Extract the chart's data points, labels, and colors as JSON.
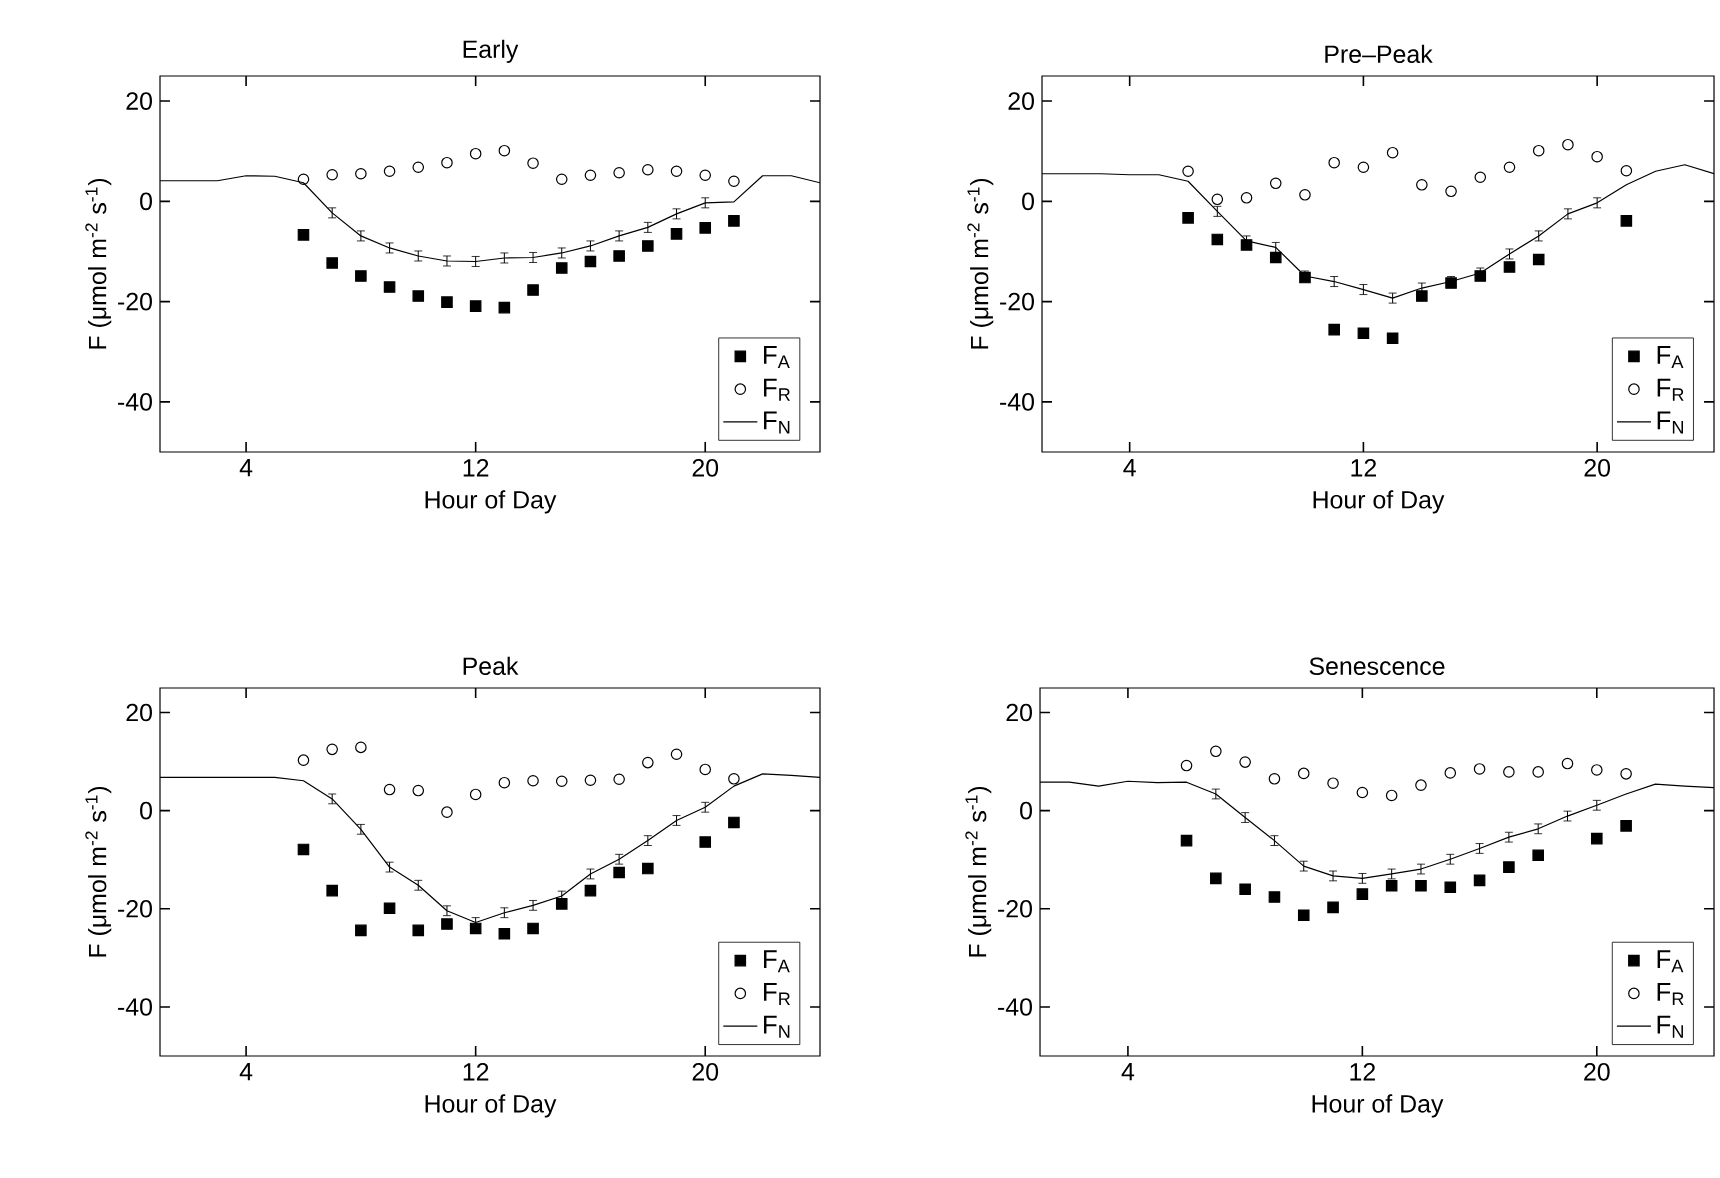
{
  "chart_data": [
    {
      "type": "scatter",
      "title": "Early",
      "xlabel": "Hour of Day",
      "ylabel": "F (μmol m$^{-2}$ s$^{-1}$)",
      "xlim": [
        1,
        24
      ],
      "ylim": [
        -50,
        25
      ],
      "xticks": [
        4,
        12,
        20
      ],
      "yticks": [
        20,
        0,
        -20,
        -40
      ],
      "legend": "bottom right",
      "series": [
        {
          "name": "F$_{A}$",
          "type": "scatter",
          "marker": "square",
          "color": "#000000",
          "x": [
            6,
            7,
            8,
            9,
            10,
            11,
            12,
            13,
            14,
            15,
            16,
            17,
            18,
            19,
            20,
            21
          ],
          "values": [
            -6.7,
            -12.3,
            -14.9,
            -17.1,
            -18.9,
            -20.1,
            -20.9,
            -21.2,
            -17.7,
            -13.3,
            -12,
            -10.9,
            -8.9,
            -6.5,
            -5.3,
            -3.9
          ]
        },
        {
          "name": "F$_{R}$",
          "type": "scatter",
          "marker": "circle",
          "color": "#000000",
          "x": [
            6,
            7,
            8,
            9,
            10,
            11,
            12,
            13,
            14,
            15,
            16,
            17,
            18,
            19,
            20,
            21
          ],
          "values": [
            4.4,
            5.3,
            5.5,
            6,
            6.8,
            7.7,
            9.5,
            10.1,
            7.6,
            4.4,
            5.2,
            5.7,
            6.3,
            6,
            5.2,
            4
          ]
        },
        {
          "name": "F$_{N}$",
          "type": "line",
          "marker": "none",
          "color": "#000000",
          "x": [
            1,
            2,
            3,
            4,
            5,
            6,
            7,
            8,
            9,
            10,
            11,
            12,
            13,
            14,
            15,
            16,
            17,
            18,
            19,
            20,
            21,
            22,
            23,
            24
          ],
          "values": [
            4.1,
            4.1,
            4.1,
            5.1,
            5,
            3.7,
            -2.3,
            -6.9,
            -9.3,
            -10.9,
            -11.9,
            -12,
            -11.3,
            -11.2,
            -10.3,
            -8.9,
            -6.9,
            -5.2,
            -2.5,
            -0.3,
            -0.1,
            5.1,
            5.1,
            3.7
          ],
          "errors": [
            null,
            null,
            null,
            null,
            null,
            null,
            1,
            1,
            1,
            1,
            1,
            1,
            1,
            1,
            1,
            1,
            1,
            1,
            1,
            1,
            null,
            null,
            null,
            null
          ]
        }
      ]
    },
    {
      "type": "scatter",
      "title": "Pre‒Peak",
      "xlabel": "Hour of Day",
      "ylabel": "F (μmol m$^{-2}$ s$^{-1}$)",
      "xlim": [
        1,
        24
      ],
      "ylim": [
        -50,
        25
      ],
      "xticks": [
        4,
        12,
        20
      ],
      "yticks": [
        20,
        0,
        -20,
        -40
      ],
      "legend": "bottom right",
      "series": [
        {
          "name": "F$_{A}$",
          "type": "scatter",
          "marker": "square",
          "color": "#000000",
          "x": [
            6,
            7,
            8,
            9,
            10,
            11,
            12,
            13,
            14,
            15,
            16,
            17,
            18,
            19,
            20,
            21
          ],
          "values": [
            -3.3,
            -7.6,
            -8.7,
            -11.2,
            -15.2,
            -25.6,
            -26.3,
            -27.3,
            -18.9,
            -16.3,
            -14.9,
            -13.1,
            -11.6,
            null,
            null,
            -3.9
          ]
        },
        {
          "name": "F$_{R}$",
          "type": "scatter",
          "marker": "circle",
          "color": "#000000",
          "x": [
            6,
            7,
            8,
            9,
            10,
            11,
            12,
            13,
            14,
            15,
            16,
            17,
            18,
            19,
            20,
            21
          ],
          "values": [
            6,
            0.4,
            0.7,
            3.6,
            1.3,
            7.7,
            6.8,
            9.7,
            3.3,
            2,
            4.8,
            6.8,
            10.1,
            11.3,
            8.9,
            6.1
          ]
        },
        {
          "name": "F$_{N}$",
          "type": "line",
          "marker": "none",
          "color": "#000000",
          "x": [
            1,
            2,
            3,
            4,
            5,
            6,
            7,
            8,
            9,
            10,
            11,
            12,
            13,
            14,
            15,
            16,
            17,
            18,
            19,
            20,
            21,
            22,
            23,
            24
          ],
          "values": [
            5.5,
            5.5,
            5.5,
            5.3,
            5.3,
            4,
            -2,
            -7.9,
            -9.2,
            -14.9,
            -16,
            -17.6,
            -19.3,
            -17.3,
            -16,
            -14.3,
            -10.5,
            -6.9,
            -2.5,
            -0.3,
            3.3,
            6,
            7.3,
            5.5
          ],
          "errors": [
            null,
            null,
            null,
            null,
            null,
            null,
            1,
            1,
            1,
            1,
            1,
            1,
            1,
            1,
            1,
            1,
            1,
            1,
            1,
            1,
            null,
            null,
            null,
            null
          ]
        }
      ]
    },
    {
      "type": "scatter",
      "title": "Peak",
      "xlabel": "Hour of Day",
      "ylabel": "F (μmol m$^{-2}$ s$^{-1}$)",
      "xlim": [
        1,
        24
      ],
      "ylim": [
        -50,
        25
      ],
      "xticks": [
        4,
        12,
        20
      ],
      "yticks": [
        20,
        0,
        -20,
        -40
      ],
      "legend": "bottom right",
      "series": [
        {
          "name": "F$_{A}$",
          "type": "scatter",
          "marker": "square",
          "color": "#000000",
          "x": [
            6,
            7,
            8,
            9,
            10,
            11,
            12,
            13,
            14,
            15,
            16,
            17,
            18,
            19,
            20,
            21
          ],
          "values": [
            -7.9,
            -16.3,
            -24.4,
            -19.9,
            -24.4,
            -23.1,
            -24,
            -25.1,
            -24,
            -19,
            -16.3,
            -12.6,
            -11.8,
            null,
            -6.4,
            -2.4
          ]
        },
        {
          "name": "F$_{R}$",
          "type": "scatter",
          "marker": "circle",
          "color": "#000000",
          "x": [
            6,
            7,
            8,
            9,
            10,
            11,
            12,
            13,
            14,
            15,
            16,
            17,
            18,
            19,
            20,
            21
          ],
          "values": [
            10.3,
            12.5,
            12.9,
            4.3,
            4.1,
            -0.3,
            3.3,
            5.7,
            6.1,
            6,
            6.2,
            6.4,
            9.8,
            11.5,
            8.4,
            6.5
          ]
        },
        {
          "name": "F$_{N}$",
          "type": "line",
          "marker": "none",
          "color": "#000000",
          "x": [
            1,
            2,
            3,
            4,
            5,
            6,
            7,
            8,
            9,
            10,
            11,
            12,
            13,
            14,
            15,
            16,
            17,
            18,
            19,
            20,
            21,
            22,
            23,
            24
          ],
          "values": [
            6.8,
            6.8,
            6.8,
            6.8,
            6.8,
            6.1,
            2.4,
            -3.8,
            -11.5,
            -15.2,
            -20.4,
            -22.8,
            -20.8,
            -19.3,
            -17.4,
            -12.9,
            -9.9,
            -6.1,
            -2,
            0.7,
            5,
            7.5,
            7.2,
            6.8
          ],
          "errors": [
            null,
            null,
            null,
            null,
            null,
            null,
            1,
            1,
            1,
            1,
            1,
            1,
            1,
            1,
            1,
            1,
            1,
            1,
            1,
            1,
            null,
            null,
            null,
            null
          ]
        }
      ]
    },
    {
      "type": "scatter",
      "title": "Senescence",
      "xlabel": "Hour of Day",
      "ylabel": "F (μmol m$^{-2}$ s$^{-1}$)",
      "xlim": [
        1,
        24
      ],
      "ylim": [
        -50,
        25
      ],
      "xticks": [
        4,
        12,
        20
      ],
      "yticks": [
        20,
        0,
        -20,
        -40
      ],
      "legend": "bottom right",
      "series": [
        {
          "name": "F$_{A}$",
          "type": "scatter",
          "marker": "square",
          "color": "#000000",
          "x": [
            6,
            7,
            8,
            9,
            10,
            11,
            12,
            13,
            14,
            15,
            16,
            17,
            18,
            19,
            20,
            21
          ],
          "values": [
            -6.1,
            -13.8,
            -16,
            -17.6,
            -21.3,
            -19.7,
            -17,
            -15.3,
            -15.3,
            -15.6,
            -14.2,
            -11.5,
            -9.1,
            null,
            -5.7,
            -3.1
          ]
        },
        {
          "name": "F$_{R}$",
          "type": "scatter",
          "marker": "circle",
          "color": "#000000",
          "x": [
            6,
            7,
            8,
            9,
            10,
            11,
            12,
            13,
            14,
            15,
            16,
            17,
            18,
            19,
            20,
            21
          ],
          "values": [
            9.2,
            12.1,
            9.9,
            6.5,
            7.6,
            5.6,
            3.7,
            3.1,
            5.2,
            7.7,
            8.5,
            7.9,
            7.9,
            9.6,
            8.3,
            7.5
          ]
        },
        {
          "name": "F$_{N}$",
          "type": "line",
          "marker": "none",
          "color": "#000000",
          "x": [
            1,
            2,
            3,
            4,
            5,
            6,
            7,
            8,
            9,
            10,
            11,
            12,
            13,
            14,
            15,
            16,
            17,
            18,
            19,
            20,
            21,
            22,
            23,
            24
          ],
          "values": [
            5.8,
            5.8,
            5,
            6,
            5.7,
            5.8,
            3.4,
            -1.4,
            -6.1,
            -11.3,
            -13.3,
            -13.8,
            -12.9,
            -11.9,
            -9.9,
            -7.7,
            -5.4,
            -3.7,
            -1.1,
            1.1,
            3.4,
            5.4,
            5,
            4.7
          ],
          "errors": [
            null,
            null,
            null,
            null,
            null,
            null,
            1,
            1,
            1,
            1,
            1,
            1,
            1,
            1,
            1,
            1,
            1,
            1,
            1,
            1,
            null,
            null,
            null,
            null
          ]
        }
      ]
    }
  ]
}
